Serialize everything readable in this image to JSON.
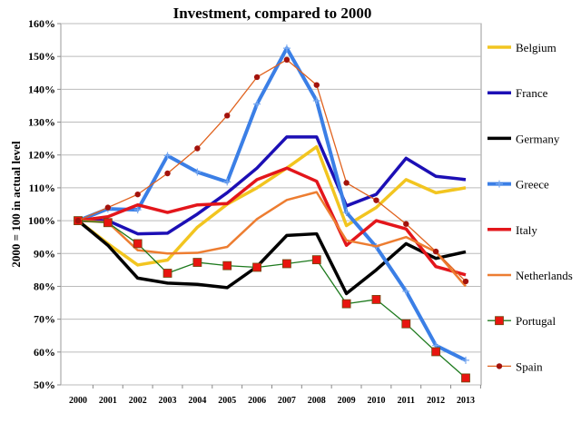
{
  "chart_data": {
    "type": "line",
    "title": "Investment, compared to 2000",
    "ylabel": "2000 = 100 in actual level",
    "xlabel": "",
    "x": [
      "2000",
      "2001",
      "2002",
      "2003",
      "2004",
      "2005",
      "2006",
      "2007",
      "2008",
      "2009",
      "2010",
      "2011",
      "2012",
      "2013"
    ],
    "ylim": [
      50,
      160
    ],
    "yticks": [
      "50%",
      "60%",
      "70%",
      "80%",
      "90%",
      "100%",
      "110%",
      "120%",
      "130%",
      "140%",
      "150%",
      "160%"
    ],
    "grid": true,
    "legend_placement": "right",
    "series": [
      {
        "name": "Belgium",
        "color": "#f2c520",
        "marker": "none",
        "values": [
          100,
          93,
          86.5,
          88,
          98,
          105,
          110,
          116,
          122.5,
          98.5,
          104,
          112.5,
          108.5,
          110
        ]
      },
      {
        "name": "France",
        "color": "#1c0fb5",
        "marker": "none",
        "values": [
          100,
          100,
          96,
          96.2,
          102,
          108.5,
          116,
          125.5,
          125.5,
          104.5,
          108,
          119,
          113.5,
          112.5
        ]
      },
      {
        "name": "Germany",
        "color": "#000000",
        "marker": "none",
        "values": [
          100,
          92.5,
          82.5,
          81,
          80.6,
          79.6,
          86,
          95.5,
          96,
          77.8,
          85,
          93,
          88.5,
          90.5
        ]
      },
      {
        "name": "Greece",
        "color": "#3b7fe6",
        "marker": "plus",
        "values": [
          100,
          103.6,
          103.3,
          119.8,
          114.8,
          111.8,
          135.5,
          152.5,
          136.5,
          102.5,
          92,
          78.5,
          62,
          57.5
        ]
      },
      {
        "name": "Italy",
        "color": "#e3161b",
        "marker": "none",
        "values": [
          100,
          101.2,
          104.8,
          102.5,
          104.8,
          105.2,
          112.5,
          116,
          112,
          92.5,
          100,
          97.5,
          86,
          83.5
        ]
      },
      {
        "name": "Netherlands",
        "color": "#ed7d31",
        "marker": "none",
        "values": [
          100,
          99.5,
          91,
          90,
          90.2,
          92,
          100.5,
          106.3,
          108.7,
          94,
          92.2,
          95,
          90.5,
          80
        ]
      },
      {
        "name": "Portugal",
        "color": "#1e7a1e",
        "marker": "square",
        "marker_color": "#e8150f",
        "values": [
          100,
          99.4,
          93,
          84,
          87.3,
          86.3,
          85.8,
          86.9,
          88.1,
          74.7,
          76,
          68.6,
          60.1,
          52.1
        ]
      },
      {
        "name": "Spain",
        "color": "#e0621e",
        "marker": "circle",
        "marker_color": "#a3120c",
        "values": [
          100,
          104,
          108,
          114.4,
          122,
          132,
          143.7,
          149,
          141.3,
          111.5,
          106.2,
          99,
          90.6,
          81.5
        ]
      }
    ]
  }
}
